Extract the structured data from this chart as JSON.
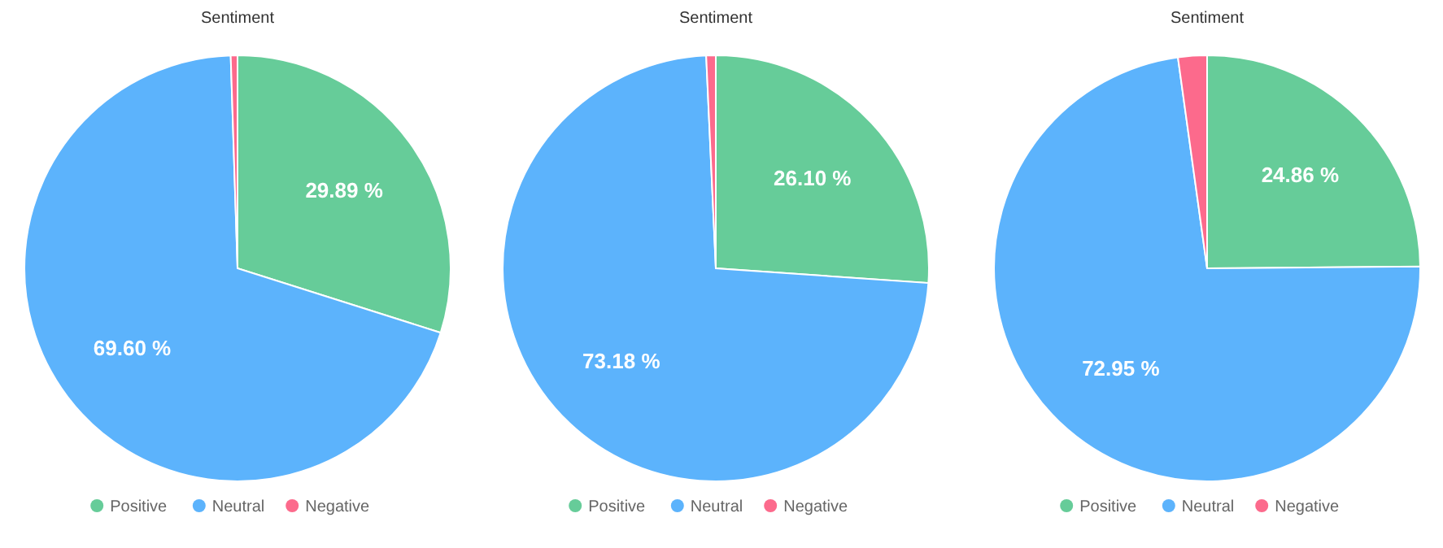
{
  "chart_data": [
    {
      "type": "pie",
      "title": "Sentiment",
      "categories": [
        "Positive",
        "Neutral",
        "Negative"
      ],
      "values": [
        29.89,
        69.6,
        0.51
      ],
      "colors": [
        "#66cc99",
        "#5cb3fc",
        "#fc6a8c"
      ],
      "value_labels": [
        "29.89 %",
        "69.60 %",
        null
      ],
      "legend": "bottom"
    },
    {
      "type": "pie",
      "title": "Sentiment",
      "categories": [
        "Positive",
        "Neutral",
        "Negative"
      ],
      "values": [
        26.1,
        73.18,
        0.72
      ],
      "colors": [
        "#66cc99",
        "#5cb3fc",
        "#fc6a8c"
      ],
      "value_labels": [
        "26.10 %",
        "73.18 %",
        null
      ],
      "legend": "bottom"
    },
    {
      "type": "pie",
      "title": "Sentiment",
      "categories": [
        "Positive",
        "Neutral",
        "Negative"
      ],
      "values": [
        24.86,
        72.95,
        2.19
      ],
      "colors": [
        "#66cc99",
        "#5cb3fc",
        "#fc6a8c"
      ],
      "value_labels": [
        "24.86 %",
        "72.95 %",
        null
      ],
      "legend": "bottom"
    }
  ]
}
